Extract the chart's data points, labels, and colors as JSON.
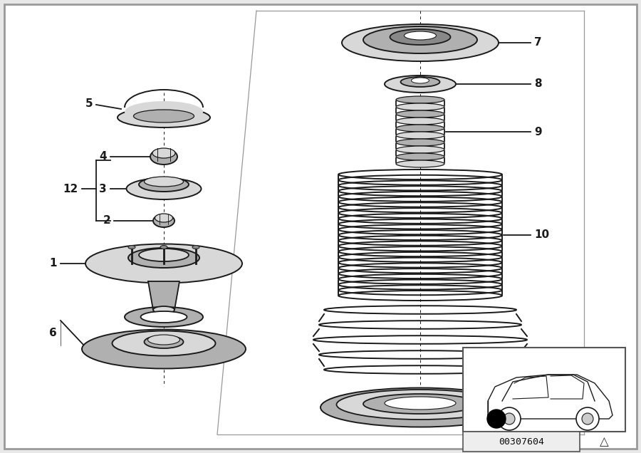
{
  "bg_color": "#e8e8e8",
  "diagram_bg": "#ffffff",
  "catalog_number": "00307604",
  "line_color": "#1a1a1a",
  "label_color": "#000000",
  "border_color": "#999999",
  "gray_light": "#d8d8d8",
  "gray_mid": "#b0b0b0",
  "gray_dark": "#888888"
}
